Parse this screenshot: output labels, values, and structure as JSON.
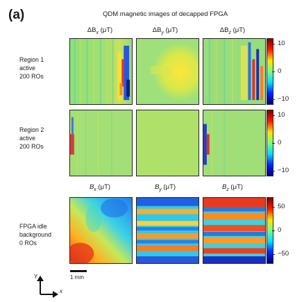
{
  "figure": {
    "panel_label": "(a)",
    "title": "QDM magnetic images of decapped FPGA",
    "scale_bar_label": "1 mm",
    "axes_glyph": {
      "y_label": "Y",
      "x_label": "x"
    }
  },
  "columns_top": [
    {
      "symbol": "ΔB",
      "subscript": "x",
      "unit": " (μT)"
    },
    {
      "symbol": "ΔB",
      "subscript": "y",
      "unit": " (μT)"
    },
    {
      "symbol": "ΔB",
      "subscript": "z",
      "unit": " (μT)"
    }
  ],
  "columns_bottom": [
    {
      "symbol": "B",
      "subscript": "x",
      "unit": " (μT)"
    },
    {
      "symbol": "B",
      "subscript": "y",
      "unit": " (μT)"
    },
    {
      "symbol": "B",
      "subscript": "z",
      "unit": " (μT)"
    }
  ],
  "rows": [
    {
      "label": "Region 1\nactive\n200 ROs",
      "colorbar_ticks": [
        "10",
        "0",
        "−10"
      ]
    },
    {
      "label": "Region 2\nactive\n200 ROs",
      "colorbar_ticks": [
        "10",
        "0",
        "−10"
      ]
    },
    {
      "label": "FPGA idle\nbackground\n0 ROs",
      "colorbar_ticks": [
        "50",
        "0",
        "−50"
      ]
    }
  ],
  "colormap": {
    "name": "jet",
    "stops": [
      "#7f0000",
      "#ff0000",
      "#ffff00",
      "#7cfc7c",
      "#00ffff",
      "#0000ff",
      "#00007f"
    ]
  }
}
